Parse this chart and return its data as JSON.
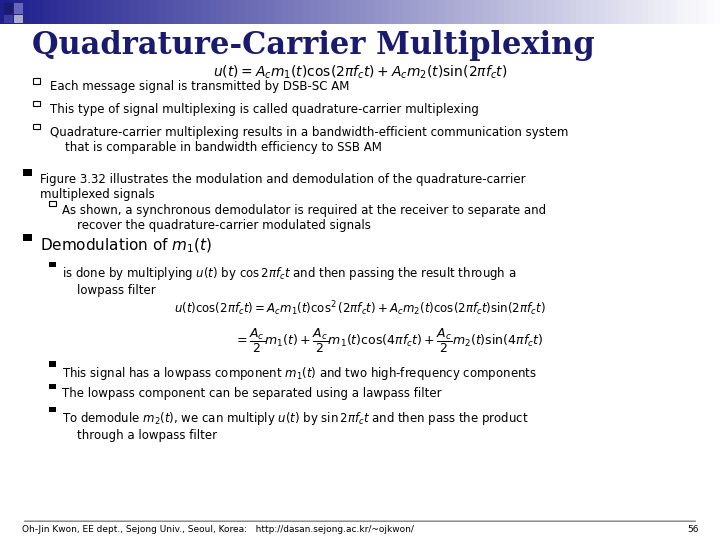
{
  "title": "Quadrature-Carrier Multiplexing",
  "title_color": "#1a1a6e",
  "bg_color": "#ffffff",
  "footer": "Oh-Jin Kwon, EE dept., Sejong Univ., Seoul, Korea:   http://dasan.sejong.ac.kr/~ojkwon/",
  "page_num": "56",
  "formula1": "$u(t) = A_c m_1(t)\\cos(2\\pi f_c t) + A_c m_2(t)\\sin(2\\pi f_c t)$",
  "formula2": "$u(t)\\cos(2\\pi f_c t) = A_c m_1(t)\\cos^2(2\\pi f_c t) + A_c m_2(t)\\cos(2\\pi f_c t)\\sin(2\\pi f_c t)$",
  "formula3": "$= \\dfrac{A_c}{2}m_1(t) + \\dfrac{A_c}{2}m_1(t)\\cos(4\\pi f_c t) + \\dfrac{A_c}{2}m_2(t)\\sin(4\\pi f_c t)$",
  "text_color": "#000000",
  "bullet1_items": [
    "Each message signal is transmitted by DSB-SC AM",
    "This type of signal multiplexing is called quadrature-carrier multiplexing",
    "Quadrature-carrier multiplexing results in a bandwidth-efficient communication system\n    that is comparable in bandwidth efficiency to SSB AM"
  ],
  "bullet2_text": "Figure 3.32 illustrates the modulation and demodulation of the quadrature-carrier\nmultiplexed signals",
  "sub_bullet2": "As shown, a synchronous demodulator is required at the receiver to separate and\n    recover the quadrature-carrier modulated signals",
  "bullet3_text": "Demodulation of $m_1(t)$",
  "sub_bullet3a": "is done by multiplying $u(t)$ by $\\cos 2\\pi f_c t$ and then passing the result through a\n    lowpass filter",
  "sub_bullets_last": [
    "This signal has a lowpass component $m_1(t)$ and two high-frequency components",
    "The lowpass component can be separated using a lawpass filter",
    "To demodule $m_2(t)$, we can multiply $u(t)$ by $\\sin 2\\pi f_c t$ and then pass the product\n    through a lowpass filter"
  ]
}
